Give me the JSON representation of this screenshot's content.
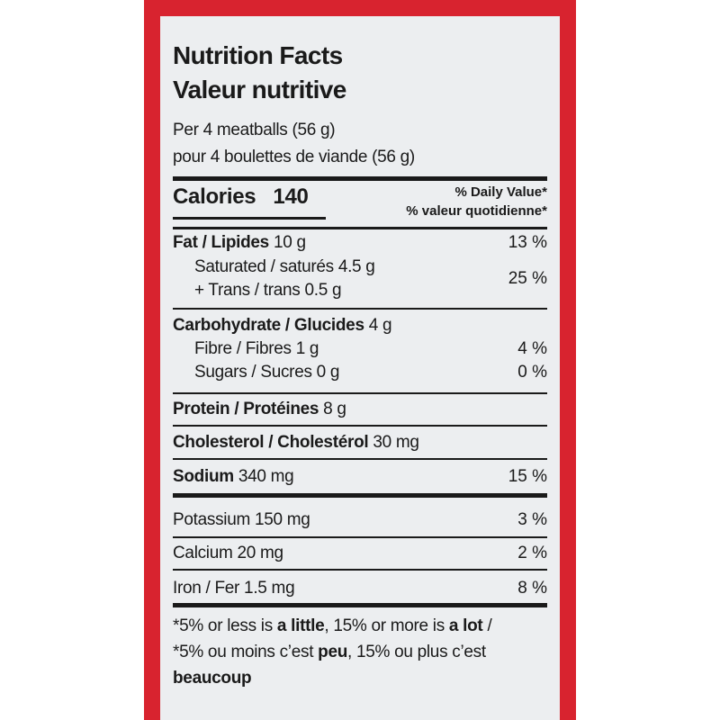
{
  "title": [
    "Nutrition Facts",
    "Valeur nutritive"
  ],
  "serving": [
    "Per 4 meatballs (56 g)",
    "pour 4 boulettes de viande (56 g)"
  ],
  "calories": {
    "label": "Calories",
    "value": "140"
  },
  "daily_value_header": [
    "% Daily Value*",
    "% valeur quotidienne*"
  ],
  "fat": {
    "label": "Fat / Lipides",
    "amount": "10 g",
    "dv": "13 %"
  },
  "saturated": {
    "line1": "Saturated / saturés 4.5 g",
    "line2": "+ Trans / trans 0.5 g",
    "dv": "25 %"
  },
  "carbohydrate": {
    "label": "Carbohydrate / Glucides",
    "amount": "4 g"
  },
  "fibre": {
    "label": "Fibre / Fibres 1 g",
    "dv": "4 %"
  },
  "sugars": {
    "label": "Sugars / Sucres 0 g",
    "dv": "0 %"
  },
  "protein": {
    "label": "Protein / Protéines",
    "amount": "8 g"
  },
  "cholesterol": {
    "label": "Cholesterol / Cholestérol",
    "amount": "30 mg"
  },
  "sodium": {
    "label": "Sodium",
    "amount": "340 mg",
    "dv": "15 %"
  },
  "potassium": {
    "label": "Potassium 150 mg",
    "dv": "3 %"
  },
  "calcium": {
    "label": "Calcium 20 mg",
    "dv": "2 %"
  },
  "iron": {
    "label": "Iron / Fer 1.5 mg",
    "dv": "8 %"
  },
  "footnote": [
    "*5% or less is ",
    "a little",
    ", 15% or more is ",
    "a lot",
    " / *5% ou moins c’est ",
    "peu",
    ", 15% ou plus c’est ",
    "beaucoup"
  ]
}
